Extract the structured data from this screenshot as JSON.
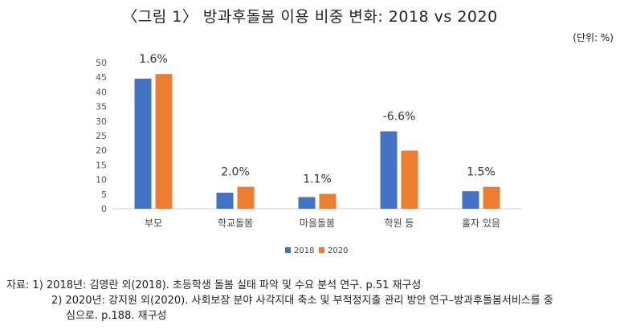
{
  "header": {
    "title": "〈그림 1〉 방과후돌봄 이용 비중 변화: 2018 vs 2020",
    "unit": "(단위: %)"
  },
  "chart_data": {
    "type": "bar",
    "categories": [
      "부모",
      "학교돌봄",
      "마을돌봄",
      "학원 등",
      "홀자 있음"
    ],
    "series": [
      {
        "name": "2018",
        "values": [
          44.5,
          5.5,
          4.0,
          26.5,
          6.0
        ]
      },
      {
        "name": "2020",
        "values": [
          46.1,
          7.5,
          5.1,
          19.9,
          7.5
        ]
      }
    ],
    "annotations": [
      "1.6%",
      "2.0%",
      "1.1%",
      "-6.6%",
      "1.5%"
    ],
    "ylim": [
      0,
      50
    ],
    "yticks": [
      0,
      5,
      10,
      15,
      20,
      25,
      30,
      35,
      40,
      45,
      50
    ],
    "grid": false,
    "legend": "bottom",
    "colors": {
      "2018": "#4472C4",
      "2020": "#ED7D31"
    }
  },
  "notes": {
    "line1": "자료: 1) 2018년: 김영란 외(2018). 초등학생 돌봄 실태 파악 및 수요 분석 연구. p.51 재구성",
    "line2": "2) 2020년: 강지원 외(2020). 사회보장 분야 사각지대 축소 및 부적정지출 관리 방안 연구–방과후돌봄서비스를 중",
    "line3": "심으로. p.188. 재구성"
  }
}
